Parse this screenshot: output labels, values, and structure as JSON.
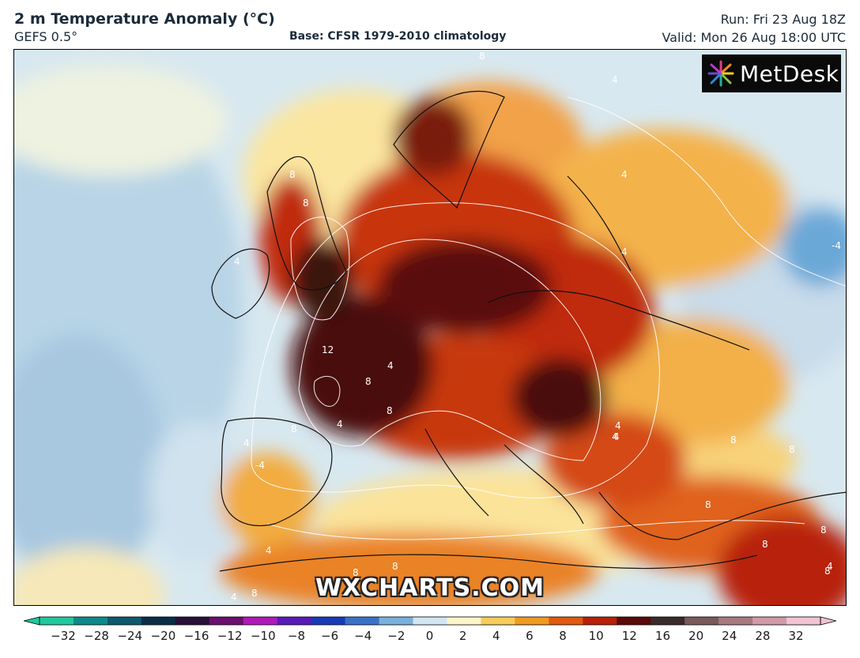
{
  "header": {
    "title": "2 m Temperature Anomaly (°C)",
    "model": "GEFS 0.5°",
    "base": "Base: CFSR 1979-2010 climatology",
    "run": "Run: Fri 23 Aug 18Z",
    "valid": "Valid: Mon 26 Aug 18:00 UTC"
  },
  "logo": {
    "text": "MetDesk",
    "icon": "metdesk-star-icon"
  },
  "watermark": "WXCHARTS.COM",
  "contour_labels": [
    "8",
    "4",
    "8",
    "8",
    "4",
    "4",
    "4",
    "-4",
    "12",
    "4",
    "8",
    "8",
    "8",
    "4",
    "4",
    "-4",
    "4",
    "4",
    "8",
    "8",
    "4",
    "8",
    "8",
    "8",
    "4",
    "4",
    "8",
    "8",
    "8",
    "8",
    "4"
  ],
  "colorbar": {
    "ticks": [
      "−32",
      "−28",
      "−24",
      "−20",
      "−16",
      "−12",
      "−10",
      "−8",
      "−6",
      "−4",
      "−2",
      "0",
      "2",
      "4",
      "6",
      "8",
      "10",
      "12",
      "16",
      "20",
      "24",
      "28",
      "32"
    ],
    "colors": [
      "#20c8a0",
      "#0e8a8a",
      "#0d5a6e",
      "#0b2e48",
      "#2a0f3a",
      "#6a0f6e",
      "#b01ab8",
      "#5a1ab8",
      "#1a3ab8",
      "#3a72c8",
      "#7ab0dc",
      "#d2e6f2",
      "#fff4c8",
      "#f8cc5a",
      "#f09a20",
      "#e05a10",
      "#b82008",
      "#5a0a0a",
      "#3a2a2a",
      "#7a5a5a",
      "#a87a80",
      "#d09aa8",
      "#f0c4d2"
    ]
  }
}
